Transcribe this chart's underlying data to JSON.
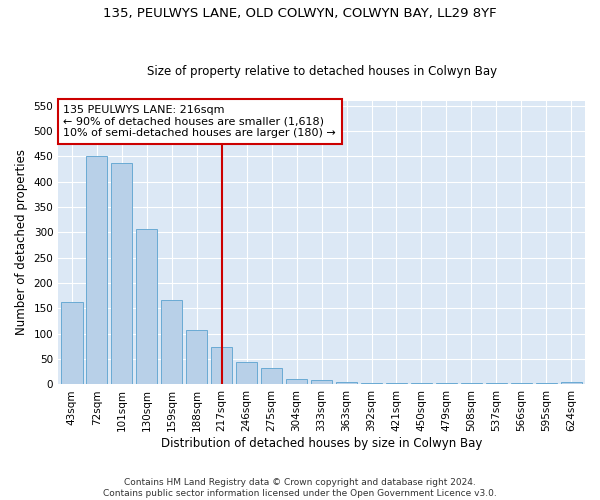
{
  "title": "135, PEULWYS LANE, OLD COLWYN, COLWYN BAY, LL29 8YF",
  "subtitle": "Size of property relative to detached houses in Colwyn Bay",
  "xlabel": "Distribution of detached houses by size in Colwyn Bay",
  "ylabel": "Number of detached properties",
  "categories": [
    "43sqm",
    "72sqm",
    "101sqm",
    "130sqm",
    "159sqm",
    "188sqm",
    "217sqm",
    "246sqm",
    "275sqm",
    "304sqm",
    "333sqm",
    "363sqm",
    "392sqm",
    "421sqm",
    "450sqm",
    "479sqm",
    "508sqm",
    "537sqm",
    "566sqm",
    "595sqm",
    "624sqm"
  ],
  "values": [
    163,
    450,
    437,
    307,
    167,
    107,
    73,
    45,
    32,
    10,
    8,
    5,
    2,
    2,
    2,
    2,
    2,
    2,
    2,
    2,
    5
  ],
  "bar_color": "#b8d0e8",
  "bar_edge_color": "#6aaad4",
  "vline_index": 6,
  "vline_color": "#cc0000",
  "annotation_text": "135 PEULWYS LANE: 216sqm\n← 90% of detached houses are smaller (1,618)\n10% of semi-detached houses are larger (180) →",
  "annotation_box_color": "white",
  "annotation_box_edge_color": "#cc0000",
  "ylim": [
    0,
    560
  ],
  "yticks": [
    0,
    50,
    100,
    150,
    200,
    250,
    300,
    350,
    400,
    450,
    500,
    550
  ],
  "bg_color": "#dce8f5",
  "footer_text": "Contains HM Land Registry data © Crown copyright and database right 2024.\nContains public sector information licensed under the Open Government Licence v3.0.",
  "title_fontsize": 9.5,
  "subtitle_fontsize": 8.5,
  "xlabel_fontsize": 8.5,
  "ylabel_fontsize": 8.5,
  "tick_fontsize": 7.5,
  "footer_fontsize": 6.5
}
